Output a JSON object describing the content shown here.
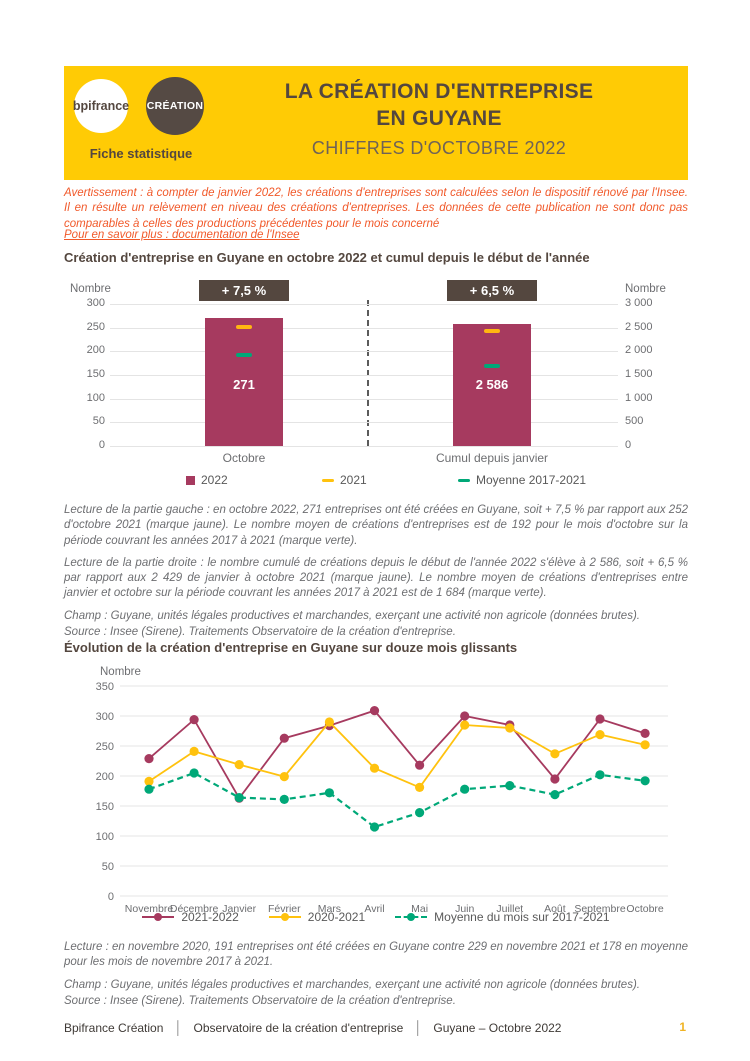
{
  "header": {
    "logo_bpifrance": "bpifrance",
    "logo_creation": "CRÉATION",
    "tagline": "Fiche statistique",
    "title_line1": "LA CRÉATION D'ENTREPRISE",
    "title_line2": "EN GUYANE",
    "subtitle": "CHIFFRES D'OCTOBRE 2022"
  },
  "notice": {
    "warning": "Avertissement : à compter de janvier 2022, les créations d'entreprises sont calculées selon le dispositif rénové par l'Insee. Il en résulte un relèvement en niveau des créations d'entreprises. Les données de cette publication ne sont donc pas comparables à celles des productions précédentes pour le mois concerné",
    "link": "Pour en savoir plus : documentation de l'Insee"
  },
  "section1": {
    "title": "Création d'entreprise en Guyane en octobre 2022 et cumul depuis le début de l'année",
    "lecture_left": "Lecture de la partie gauche : en octobre 2022, 271 entreprises ont été créées en Guyane, soit + 7,5 % par rapport aux 252 d'octobre 2021 (marque jaune). Le nombre moyen de créations d'entreprises est de 192 pour le mois d'octobre sur la période couvrant les années 2017 à 2021 (marque verte).",
    "lecture_right": "Lecture de la partie droite : le nombre cumulé de créations depuis le début de l'année 2022 s'élève à 2 586, soit + 6,5 % par rapport aux 2 429 de janvier à octobre 2021 (marque jaune). Le nombre moyen de créations d'entreprises entre janvier et octobre sur la période couvrant les années 2017 à 2021 est de 1 684 (marque verte).",
    "champ": "Champ : Guyane, unités légales productives et marchandes, exerçant une activité non agricole (données brutes).",
    "source": "Source : Insee (Sirene). Traitements Observatoire de la création d'entreprise."
  },
  "section2": {
    "title": "Évolution de la création d'entreprise en Guyane sur douze mois glissants",
    "lecture": "Lecture : en novembre 2020, 191 entreprises ont été créées en Guyane contre 229 en novembre 2021 et 178 en moyenne pour les mois de novembre 2017 à 2021.",
    "champ": "Champ : Guyane, unités légales productives et marchandes, exerçant une activité non agricole (données brutes).",
    "source": "Source : Insee (Sirene). Traitements Observatoire de la création d'entreprise."
  },
  "footer": {
    "brand": "Bpifrance Création",
    "separator": "│",
    "dept": "Observatoire de la création d'entreprise",
    "edition": "Guyane – Octobre 2022",
    "page": "1"
  },
  "colors": {
    "banner_yellow": "#FFCB05",
    "brand_brown": "#54473F",
    "accent_orange": "#F1592A",
    "bar_red": "#A63A5F",
    "marker_yellow": "#FFB612",
    "series_yellow": "#FFC20E",
    "marker_green": "#00A878",
    "text_gray": "#6D6E71"
  },
  "chart_data": [
    {
      "type": "bar",
      "title": "Création d'entreprise en Guyane en octobre 2022 et cumul depuis le début de l'année",
      "axis_label_left": "Nombre",
      "axis_label_right": "Nombre",
      "left_axis_ticks": [
        "300",
        "250",
        "200",
        "150",
        "100",
        "50",
        "0"
      ],
      "right_axis_ticks": [
        "3 000",
        "2 500",
        "2 000",
        "1 500",
        "1 000",
        "500",
        "0"
      ],
      "ylim_left": [
        0,
        300
      ],
      "ylim_right": [
        0,
        3000
      ],
      "grid": true,
      "groups": [
        {
          "category": "Octobre",
          "badge": "+ 7,5 %",
          "value": 271,
          "value_label": "271",
          "marker_2021": 252,
          "marker_moyenne_2017_2021": 192,
          "axis_max": 300
        },
        {
          "category": "Cumul depuis janvier",
          "badge": "+ 6,5 %",
          "value": 2586,
          "value_label": "2 586",
          "marker_2021": 2429,
          "marker_moyenne_2017_2021": 1684,
          "axis_max": 3000
        }
      ],
      "legend": [
        "2022",
        "2021",
        "Moyenne 2017-2021"
      ],
      "legend_position": "bottom"
    },
    {
      "type": "line",
      "title": "Évolution de la création d'entreprise en Guyane sur douze mois glissants",
      "ylabel": "Nombre",
      "ylim": [
        0,
        350
      ],
      "yticks": [
        350,
        300,
        250,
        200,
        150,
        100,
        50,
        0
      ],
      "grid": true,
      "categories": [
        "Novembre",
        "Décembre",
        "Janvier",
        "Février",
        "Mars",
        "Avril",
        "Mai",
        "Juin",
        "Juillet",
        "Août",
        "Septembre",
        "Octobre"
      ],
      "series": [
        {
          "name": "2021-2022",
          "color": "#A63A5F",
          "dashed": false,
          "values": [
            229,
            294,
            163,
            263,
            284,
            309,
            218,
            300,
            285,
            195,
            295,
            271
          ]
        },
        {
          "name": "2020-2021",
          "color": "#FFC20E",
          "dashed": false,
          "values": [
            191,
            241,
            219,
            199,
            290,
            213,
            181,
            285,
            280,
            237,
            269,
            252
          ]
        },
        {
          "name": "Moyenne du mois sur 2017-2021",
          "color": "#00A878",
          "dashed": true,
          "values": [
            178,
            205,
            164,
            161,
            172,
            115,
            139,
            178,
            184,
            169,
            202,
            192
          ]
        }
      ],
      "legend_position": "bottom"
    }
  ]
}
